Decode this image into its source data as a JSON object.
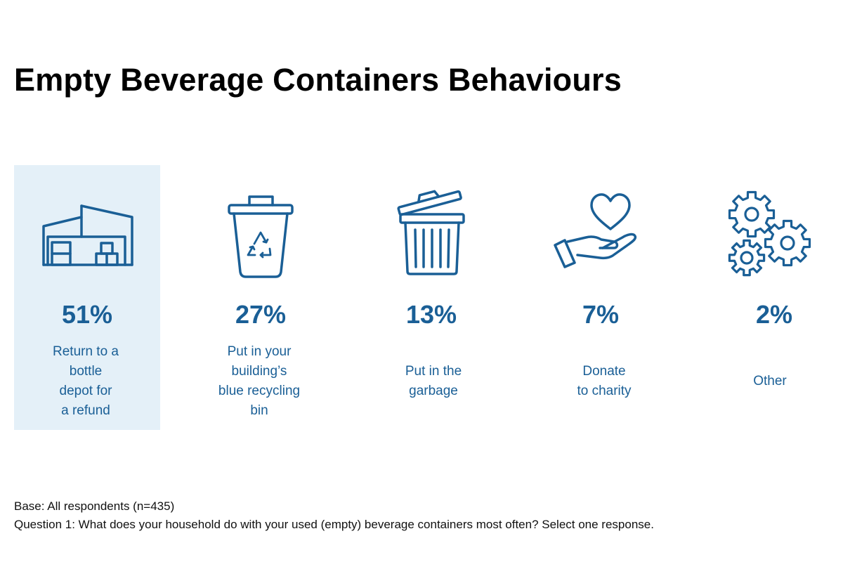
{
  "title": "Empty Beverage Containers Behaviours",
  "colors": {
    "accent": "#1a5f96",
    "highlight_bg": "#e4f0f8",
    "title": "#000000"
  },
  "items": [
    {
      "value": "51%",
      "label": "Return to a\nbottle\ndepot for\na refund",
      "icon": "warehouse-icon",
      "highlighted": true
    },
    {
      "value": "27%",
      "label": "Put in your\nbuilding’s\nblue recycling\nbin",
      "icon": "recycling-bin-icon",
      "highlighted": false
    },
    {
      "value": "13%",
      "label": "Put in the\ngarbage",
      "icon": "garbage-can-icon",
      "highlighted": false
    },
    {
      "value": "7%",
      "label": "Donate\nto charity",
      "icon": "heart-hand-icon",
      "highlighted": false
    },
    {
      "value": "2%",
      "label": "Other",
      "icon": "gears-icon",
      "highlighted": false
    }
  ],
  "chart_data": {
    "type": "table",
    "title": "Empty Beverage Containers Behaviours",
    "categories": [
      "Return to a bottle depot for a refund",
      "Put in your building’s blue recycling bin",
      "Put in the garbage",
      "Donate to charity",
      "Other"
    ],
    "values": [
      51,
      27,
      13,
      7,
      2
    ],
    "unit": "%",
    "highlighted_category": "Return to a bottle depot for a refund"
  },
  "footer": {
    "base": "Base: All respondents (n=435)",
    "question": "Question 1: What does your household do with your used (empty) beverage containers most often? Select one response."
  }
}
